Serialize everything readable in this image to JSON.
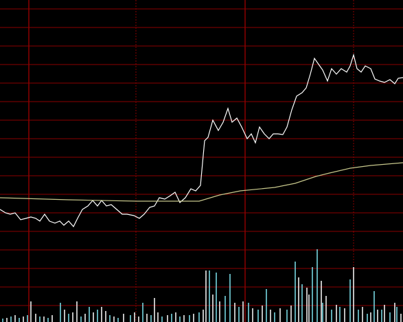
{
  "chart_data": [
    {
      "type": "line",
      "x": [
        0,
        8,
        15,
        22,
        30,
        38,
        45,
        52,
        58,
        65,
        72,
        80,
        87,
        93,
        100,
        107,
        113,
        120,
        128,
        135,
        142,
        148,
        155,
        162,
        170,
        178,
        185,
        195,
        203,
        210,
        218,
        225,
        232,
        240,
        248,
        255,
        262,
        270,
        278,
        285,
        292,
        298,
        303,
        310,
        318,
        325,
        332,
        338,
        345,
        352,
        360,
        366,
        372,
        378,
        385,
        392,
        398,
        405,
        412,
        418,
        425,
        432,
        440,
        446,
        452,
        458,
        465,
        470,
        477,
        483,
        490,
        497,
        505,
        510,
        515,
        520,
        526,
        532,
        540,
        546,
        553,
        560,
        568,
        575,
        580,
        587
      ],
      "series": [
        {
          "color": "#ffffff",
          "values": [
            32,
            27,
            25,
            27,
            17,
            19,
            21,
            19,
            15,
            25,
            15,
            12,
            15,
            9,
            15,
            7,
            19,
            32,
            37,
            45,
            37,
            45,
            37,
            39,
            32,
            25,
            25,
            23,
            19,
            25,
            35,
            37,
            49,
            47,
            52,
            57,
            42,
            49,
            62,
            59,
            67,
            132,
            137,
            162,
            147,
            159,
            179,
            159,
            165,
            152,
            135,
            142,
            129,
            152,
            142,
            135,
            142,
            142,
            141,
            152,
            177,
            197,
            202,
            209,
            229,
            252,
            242,
            235,
            219,
            237,
            229,
            237,
            232,
            241,
            257,
            237,
            232,
            241,
            237,
            222,
            219,
            217,
            221,
            215,
            223,
            224
          ]
        },
        {
          "color": "#c8c88c",
          "x": [
            0,
            100,
            200,
            290,
            320,
            350,
            400,
            430,
            460,
            480,
            510,
            540,
            587
          ],
          "values": [
            49,
            46,
            44,
            44,
            53,
            59,
            64,
            70,
            80,
            85,
            92,
            96,
            100
          ]
        }
      ],
      "xlim": [
        0,
        587
      ],
      "xticks": [
        42,
        198,
        357,
        515
      ],
      "ylim": [
        0,
        324
      ],
      "yticks": [
        0,
        27,
        54,
        81,
        108,
        135,
        162,
        189,
        216,
        243,
        270,
        297,
        324
      ],
      "grid": true,
      "grid_color": "#8c0000"
    },
    {
      "type": "bar",
      "series": [
        {
          "color": "#7fe6f0",
          "x": [
            4,
            16,
            28,
            40,
            58,
            70,
            88,
            100,
            118,
            130,
            142,
            160,
            172,
            190,
            208,
            220,
            236,
            250,
            262,
            276,
            290,
            305,
            315,
            328,
            335,
            348,
            362,
            376,
            388,
            400,
            418,
            430,
            440,
            455,
            462,
            470,
            483,
            495,
            510,
            522,
            535,
            545,
            556,
            568,
            578
          ],
          "values": [
            5,
            8,
            6,
            10,
            8,
            6,
            28,
            12,
            8,
            22,
            18,
            10,
            6,
            10,
            28,
            10,
            8,
            12,
            8,
            10,
            14,
            75,
            72,
            38,
            70,
            22,
            28,
            18,
            48,
            14,
            18,
            88,
            55,
            80,
            106,
            28,
            18,
            22,
            62,
            18,
            12,
            45,
            18,
            14,
            22
          ]
        },
        {
          "color": "#ffffff",
          "x": [
            10,
            22,
            34,
            45,
            52,
            64,
            76,
            94,
            106,
            112,
            124,
            136,
            148,
            154,
            166,
            180,
            196,
            202,
            214,
            225,
            230,
            244,
            256,
            268,
            282,
            296,
            300,
            310,
            320,
            342,
            354,
            368,
            382,
            394,
            408,
            424,
            435,
            447,
            450,
            468,
            475,
            490,
            502,
            515,
            528,
            540,
            550,
            560,
            575,
            584
          ],
          "values": [
            6,
            10,
            8,
            30,
            12,
            8,
            10,
            18,
            14,
            30,
            12,
            14,
            22,
            16,
            8,
            12,
            14,
            8,
            12,
            35,
            14,
            10,
            14,
            10,
            12,
            18,
            75,
            40,
            30,
            28,
            30,
            20,
            24,
            18,
            20,
            24,
            65,
            50,
            40,
            60,
            38,
            25,
            20,
            80,
            22,
            14,
            18,
            25,
            28,
            12
          ]
        }
      ],
      "xlim": [
        0,
        587
      ],
      "xticks": [
        42,
        198,
        357,
        515
      ],
      "ylim": [
        0,
        132
      ],
      "yticks": [
        24,
        51,
        78,
        105
      ],
      "grid": true,
      "grid_color": "#8c0000"
    }
  ]
}
